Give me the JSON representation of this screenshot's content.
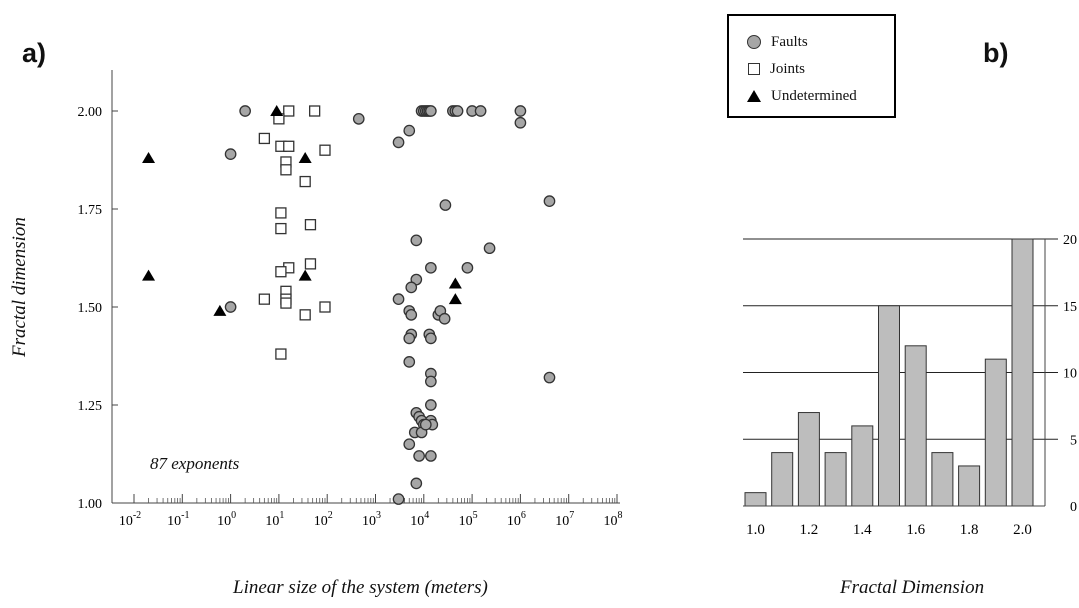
{
  "panels": {
    "a_label": "a)",
    "b_label": "b)"
  },
  "legend": {
    "entries": [
      {
        "label": "Faults",
        "marker": "circle",
        "color": "#a6a6a6"
      },
      {
        "label": "Joints",
        "marker": "square",
        "color": "#ffffff"
      },
      {
        "label": "Undetermined",
        "marker": "triangle",
        "color": "#000000"
      }
    ]
  },
  "annotation": "87 exponents",
  "chart_data": [
    {
      "type": "scatter",
      "xlabel": "Linear size of the system (meters)",
      "ylabel": "Fractal dimension",
      "xscale": "log",
      "xlim": [
        0.01,
        100000000
      ],
      "ylim": [
        1.0,
        2.1
      ],
      "xticks": [
        {
          "base": "10",
          "exp": "-2"
        },
        {
          "base": "10",
          "exp": "-1"
        },
        {
          "base": "10",
          "exp": "0"
        },
        {
          "base": "10",
          "exp": "1"
        },
        {
          "base": "10",
          "exp": "2"
        },
        {
          "base": "10",
          "exp": "3"
        },
        {
          "base": "10",
          "exp": "4"
        },
        {
          "base": "10",
          "exp": "5"
        },
        {
          "base": "10",
          "exp": "6"
        },
        {
          "base": "10",
          "exp": "7"
        },
        {
          "base": "10",
          "exp": "8"
        }
      ],
      "yticks": [
        "1.00",
        "1.25",
        "1.50",
        "1.75",
        "2.00"
      ],
      "grid": false,
      "series": [
        {
          "name": "Faults",
          "points": [
            [
              2,
              2.0
            ],
            [
              1,
              1.89
            ],
            [
              1,
              1.5
            ],
            [
              450,
              1.98
            ],
            [
              5000,
              1.95
            ],
            [
              3000,
              1.92
            ],
            [
              9000,
              2.0
            ],
            [
              10000,
              2.0
            ],
            [
              11000,
              2.0
            ],
            [
              12000,
              2.0
            ],
            [
              13000,
              2.0
            ],
            [
              14000,
              2.0
            ],
            [
              40000,
              2.0
            ],
            [
              45000,
              2.0
            ],
            [
              50000,
              2.0
            ],
            [
              100000,
              2.0
            ],
            [
              150000,
              2.0
            ],
            [
              1000000,
              2.0
            ],
            [
              1000000,
              1.97
            ],
            [
              4000000,
              1.77
            ],
            [
              4000000,
              1.32
            ],
            [
              28000,
              1.76
            ],
            [
              7000,
              1.67
            ],
            [
              14000,
              1.6
            ],
            [
              80000,
              1.6
            ],
            [
              230000,
              1.65
            ],
            [
              7000,
              1.57
            ],
            [
              5500,
              1.55
            ],
            [
              3000,
              1.52
            ],
            [
              5000,
              1.49
            ],
            [
              5500,
              1.48
            ],
            [
              20000,
              1.48
            ],
            [
              22000,
              1.49
            ],
            [
              27000,
              1.47
            ],
            [
              5500,
              1.43
            ],
            [
              5000,
              1.42
            ],
            [
              13000,
              1.43
            ],
            [
              14000,
              1.42
            ],
            [
              5000,
              1.36
            ],
            [
              14000,
              1.33
            ],
            [
              14000,
              1.31
            ],
            [
              14000,
              1.25
            ],
            [
              7000,
              1.23
            ],
            [
              8000,
              1.22
            ],
            [
              9000,
              1.21
            ],
            [
              10000,
              1.2
            ],
            [
              14000,
              1.21
            ],
            [
              15000,
              1.2
            ],
            [
              6500,
              1.18
            ],
            [
              9000,
              1.18
            ],
            [
              11000,
              1.2
            ],
            [
              5000,
              1.15
            ],
            [
              8000,
              1.12
            ],
            [
              14000,
              1.12
            ],
            [
              7000,
              1.05
            ],
            [
              3000,
              1.01
            ]
          ]
        },
        {
          "name": "Joints",
          "points": [
            [
              16,
              2.0
            ],
            [
              55,
              2.0
            ],
            [
              10,
              1.98
            ],
            [
              5,
              1.93
            ],
            [
              11,
              1.91
            ],
            [
              16,
              1.91
            ],
            [
              90,
              1.9
            ],
            [
              14,
              1.87
            ],
            [
              14,
              1.85
            ],
            [
              35,
              1.82
            ],
            [
              11,
              1.74
            ],
            [
              45,
              1.71
            ],
            [
              11,
              1.7
            ],
            [
              16,
              1.6
            ],
            [
              45,
              1.61
            ],
            [
              11,
              1.59
            ],
            [
              14,
              1.54
            ],
            [
              14,
              1.52
            ],
            [
              14,
              1.51
            ],
            [
              5,
              1.52
            ],
            [
              90,
              1.5
            ],
            [
              35,
              1.48
            ],
            [
              11,
              1.38
            ]
          ]
        },
        {
          "name": "Undetermined",
          "points": [
            [
              0.02,
              1.88
            ],
            [
              0.02,
              1.58
            ],
            [
              0.6,
              1.49
            ],
            [
              9,
              2.0
            ],
            [
              35,
              1.88
            ],
            [
              35,
              1.58
            ],
            [
              45000,
              1.56
            ],
            [
              45000,
              1.52
            ]
          ]
        }
      ]
    },
    {
      "type": "bar",
      "xlabel": "Fractal Dimension",
      "categories": [
        "1.0",
        "1.1",
        "1.2",
        "1.3",
        "1.4",
        "1.5",
        "1.6",
        "1.7",
        "1.8",
        "1.9",
        "2.0"
      ],
      "values": [
        1,
        4,
        7,
        4,
        6,
        15,
        12,
        4,
        3,
        11,
        20
      ],
      "xticks": [
        "1.0",
        "1.2",
        "1.4",
        "1.6",
        "1.8",
        "2.0"
      ],
      "yticks": [
        "0",
        "5",
        "10",
        "15",
        "20"
      ],
      "ylim": [
        0,
        20
      ],
      "yaxis_side": "right",
      "grid": true,
      "bar_color": "#bdbdbd"
    }
  ]
}
